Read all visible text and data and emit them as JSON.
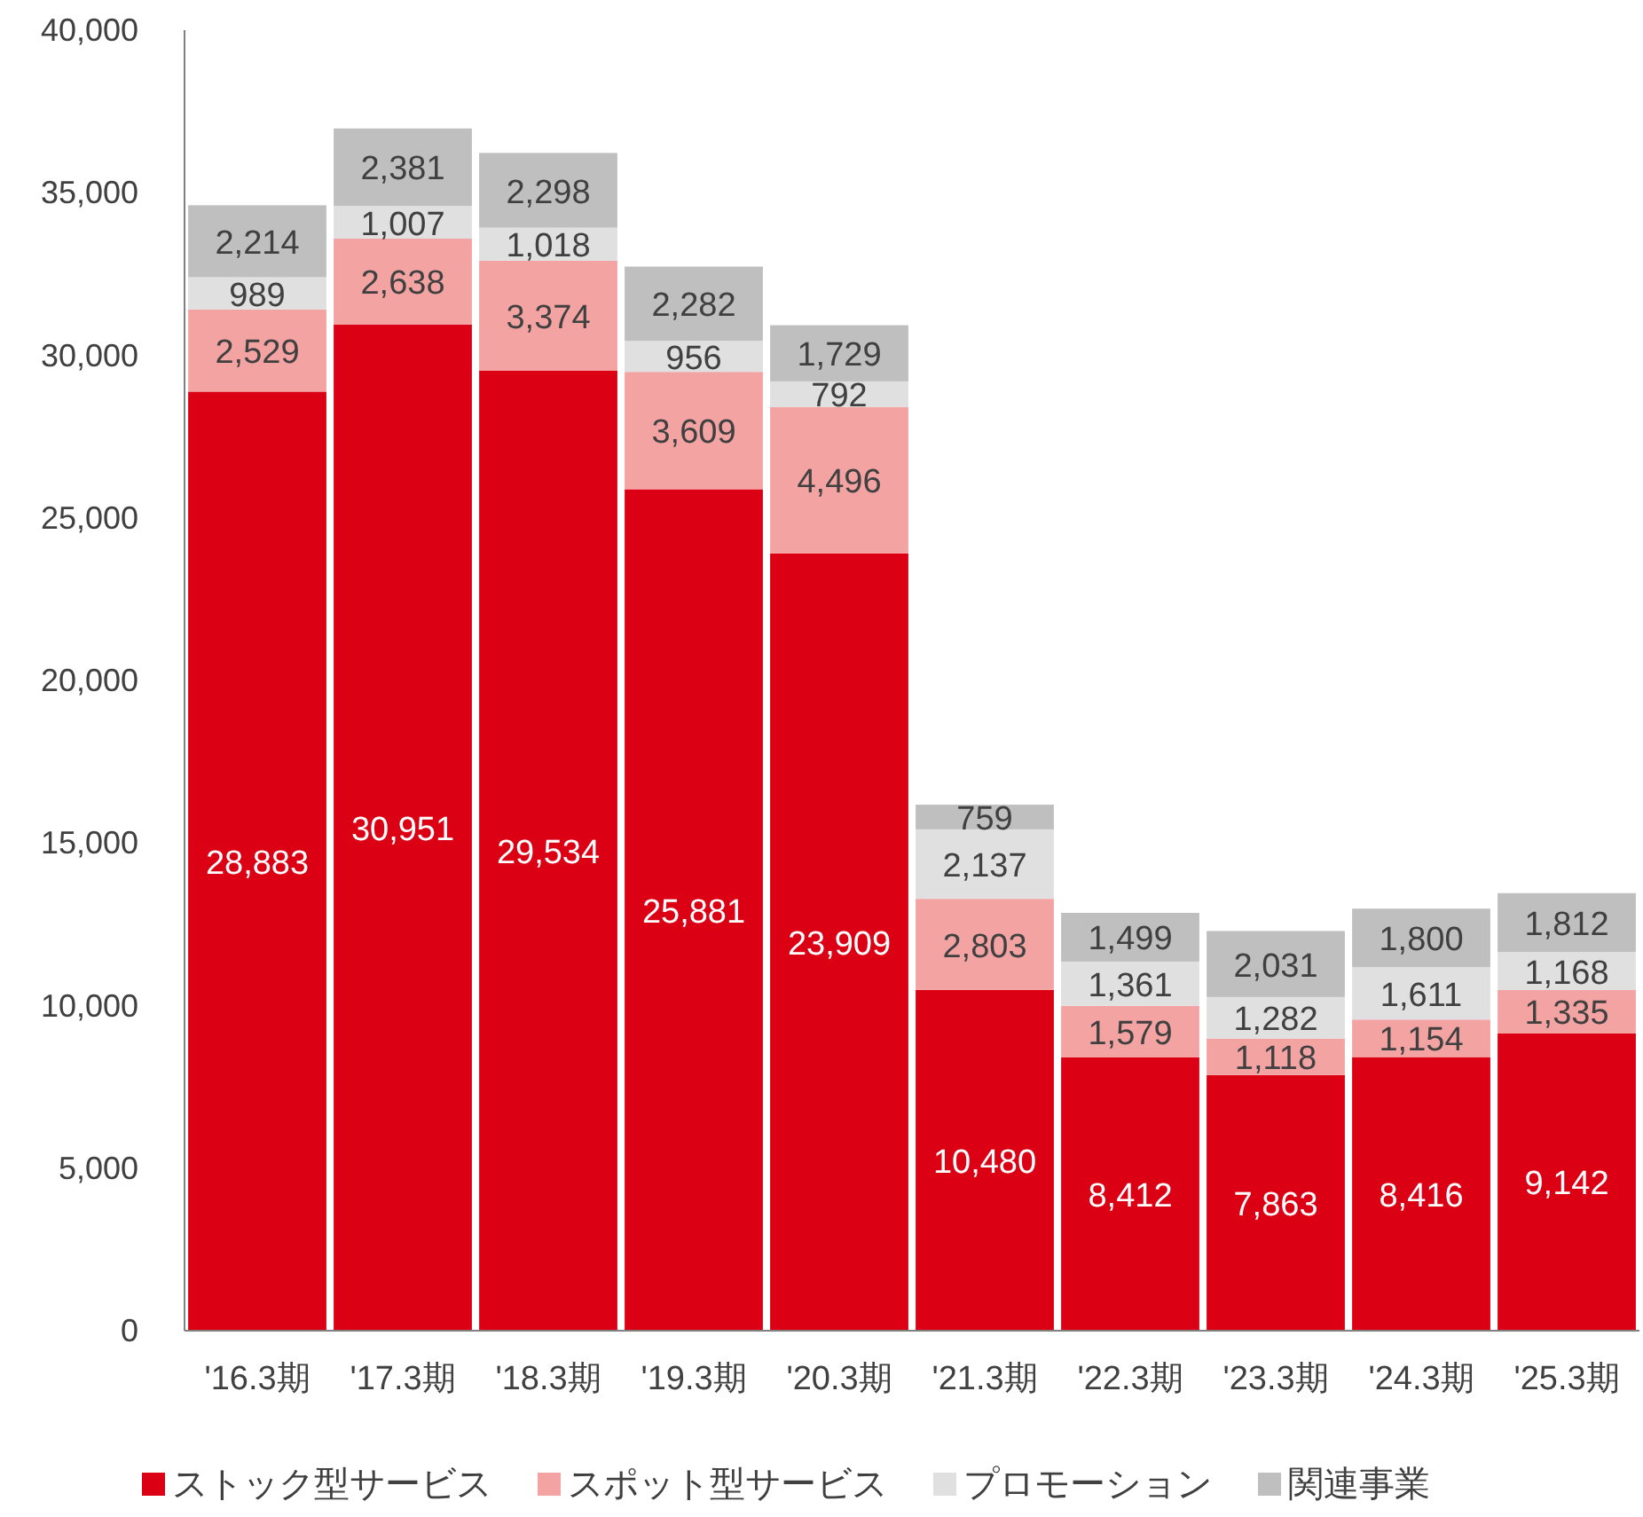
{
  "chart_data": {
    "type": "bar",
    "stacked": true,
    "categories": [
      "'16.3期",
      "'17.3期",
      "'18.3期",
      "'19.3期",
      "'20.3期",
      "'21.3期",
      "'22.3期",
      "'23.3期",
      "'24.3期",
      "'25.3期"
    ],
    "series": [
      {
        "name": "ストック型サービス",
        "color": "#dc0014",
        "values": [
          28883,
          30951,
          29534,
          25881,
          23909,
          10480,
          8412,
          7863,
          8416,
          9142
        ],
        "value_labels": [
          "28,883",
          "30,951",
          "29,534",
          "25,881",
          "23,909",
          "10,480",
          "8,412",
          "7,863",
          "8,416",
          "9,142"
        ]
      },
      {
        "name": "スポット型サービス",
        "color": "#f4a3a3",
        "values": [
          2529,
          2638,
          3374,
          3609,
          4496,
          2803,
          1579,
          1118,
          1154,
          1335
        ],
        "value_labels": [
          "2,529",
          "2,638",
          "3,374",
          "3,609",
          "4,496",
          "2,803",
          "1,579",
          "1,118",
          "1,154",
          "1,335"
        ]
      },
      {
        "name": "プロモーション",
        "color": "#e0e0e0",
        "values": [
          989,
          1007,
          1018,
          956,
          792,
          2137,
          1361,
          1282,
          1611,
          1168
        ],
        "value_labels": [
          "989",
          "1,007",
          "1,018",
          "956",
          "792",
          "2,137",
          "1,361",
          "1,282",
          "1,611",
          "1,168"
        ]
      },
      {
        "name": "関連事業",
        "color": "#bfbfbf",
        "values": [
          2214,
          2381,
          2298,
          2282,
          1729,
          759,
          1499,
          2031,
          1800,
          1812
        ],
        "value_labels": [
          "2,214",
          "2,381",
          "2,298",
          "2,282",
          "1,729",
          "759",
          "1,499",
          "2,031",
          "1,800",
          "1,812"
        ]
      }
    ],
    "ylim": [
      0,
      40000
    ],
    "yticks": [
      {
        "value": 0,
        "label": "0"
      },
      {
        "value": 5000,
        "label": "5,000"
      },
      {
        "value": 10000,
        "label": "10,000"
      },
      {
        "value": 15000,
        "label": "15,000"
      },
      {
        "value": 20000,
        "label": "20,000"
      },
      {
        "value": 25000,
        "label": "25,000"
      },
      {
        "value": 30000,
        "label": "30,000"
      },
      {
        "value": 35000,
        "label": "35,000"
      },
      {
        "value": 40000,
        "label": "40,000"
      }
    ],
    "legend": "bottom",
    "grid": false
  }
}
